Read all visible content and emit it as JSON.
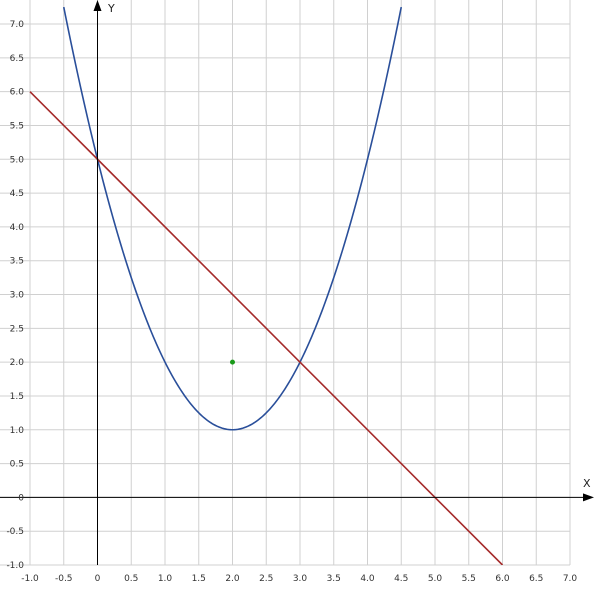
{
  "chart_data": {
    "type": "line",
    "title": "",
    "xlabel": "X",
    "ylabel": "Y",
    "xlim": [
      -1.0,
      7.0
    ],
    "ylim": [
      -1.0,
      7.0
    ],
    "grid": true,
    "x_ticks": [
      "-1.0",
      "-0.5",
      "0",
      "0.5",
      "1.0",
      "1.5",
      "2.0",
      "2.5",
      "3.0",
      "3.5",
      "4.0",
      "4.5",
      "5.0",
      "5.5",
      "6.0",
      "6.5",
      "7.0"
    ],
    "y_ticks": [
      "-1.0",
      "-0.5",
      "0",
      "0.5",
      "1.0",
      "1.5",
      "2.0",
      "2.5",
      "3.0",
      "3.5",
      "4.0",
      "4.5",
      "5.0",
      "5.5",
      "6.0",
      "6.5",
      "7.0"
    ],
    "series": [
      {
        "type": "line",
        "color": "#2a4f9a",
        "x": [
          -0.5,
          0,
          0.5,
          1.0,
          1.5,
          2.0,
          2.5,
          3.0,
          3.5,
          4.0,
          4.5
        ],
        "y": [
          7.25,
          5.0,
          3.25,
          2.0,
          1.25,
          1.0,
          1.25,
          2.0,
          3.25,
          5.0,
          7.25
        ]
      },
      {
        "type": "line",
        "color": "#a52a2a",
        "x": [
          -1.0,
          0,
          3.0,
          5.0,
          6.0
        ],
        "y": [
          6.0,
          5.0,
          2.0,
          0,
          -1.0
        ]
      },
      {
        "type": "scatter",
        "color": "#1a9a1a",
        "x": [
          2.0
        ],
        "y": [
          2.0
        ]
      }
    ]
  },
  "colors": {
    "grid": "#d0d0d0",
    "axis": "#000000"
  }
}
